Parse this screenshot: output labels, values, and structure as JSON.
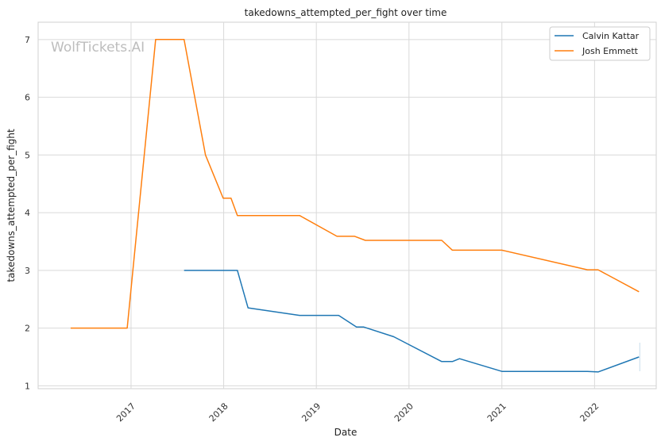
{
  "chart_data": {
    "type": "line",
    "title": "takedowns_attempted_per_fight over time",
    "xlabel": "Date",
    "ylabel": "takedowns_attempted_per_fight",
    "watermark": "WolfTickets.AI",
    "xlim": [
      "2016-01-01",
      "2022-09-01"
    ],
    "ylim": [
      0.95,
      7.3
    ],
    "x_ticks": [
      "2017-01-01",
      "2018-01-01",
      "2019-01-01",
      "2020-01-01",
      "2021-01-01",
      "2022-01-01"
    ],
    "x_tick_labels": [
      "2017",
      "2018",
      "2019",
      "2020",
      "2021",
      "2022"
    ],
    "y_ticks": [
      1,
      2,
      3,
      4,
      5,
      6,
      7
    ],
    "y_tick_labels": [
      "1",
      "2",
      "3",
      "4",
      "5",
      "6",
      "7"
    ],
    "grid": true,
    "legend_position": "top-right",
    "series": [
      {
        "name": "Calvin Kattar",
        "color": "#1f77b4",
        "points": [
          [
            "2017-07-29",
            3.0
          ],
          [
            "2018-02-24",
            3.0
          ],
          [
            "2018-04-07",
            2.35
          ],
          [
            "2018-10-27",
            2.22
          ],
          [
            "2019-03-30",
            2.22
          ],
          [
            "2019-06-08",
            2.02
          ],
          [
            "2019-07-06",
            2.02
          ],
          [
            "2019-11-02",
            1.85
          ],
          [
            "2020-05-09",
            1.42
          ],
          [
            "2020-06-20",
            1.42
          ],
          [
            "2020-07-18",
            1.47
          ],
          [
            "2021-01-01",
            1.25
          ],
          [
            "2021-12-04",
            1.25
          ],
          [
            "2022-01-15",
            1.24
          ],
          [
            "2022-06-25",
            1.5
          ]
        ]
      },
      {
        "name": "Josh Emmett",
        "color": "#ff7f0e",
        "points": [
          [
            "2016-05-08",
            2.0
          ],
          [
            "2016-12-17",
            2.0
          ],
          [
            "2017-04-08",
            7.0
          ],
          [
            "2017-07-29",
            7.0
          ],
          [
            "2017-10-21",
            5.0
          ],
          [
            "2017-12-30",
            4.25
          ],
          [
            "2018-01-30",
            4.25
          ],
          [
            "2018-02-24",
            3.95
          ],
          [
            "2018-10-27",
            3.95
          ],
          [
            "2019-03-23",
            3.59
          ],
          [
            "2019-06-01",
            3.59
          ],
          [
            "2019-07-13",
            3.52
          ],
          [
            "2020-05-09",
            3.52
          ],
          [
            "2020-06-20",
            3.35
          ],
          [
            "2021-01-01",
            3.35
          ],
          [
            "2021-12-04",
            3.01
          ],
          [
            "2022-01-15",
            3.01
          ],
          [
            "2022-06-25",
            2.63
          ]
        ]
      }
    ]
  }
}
